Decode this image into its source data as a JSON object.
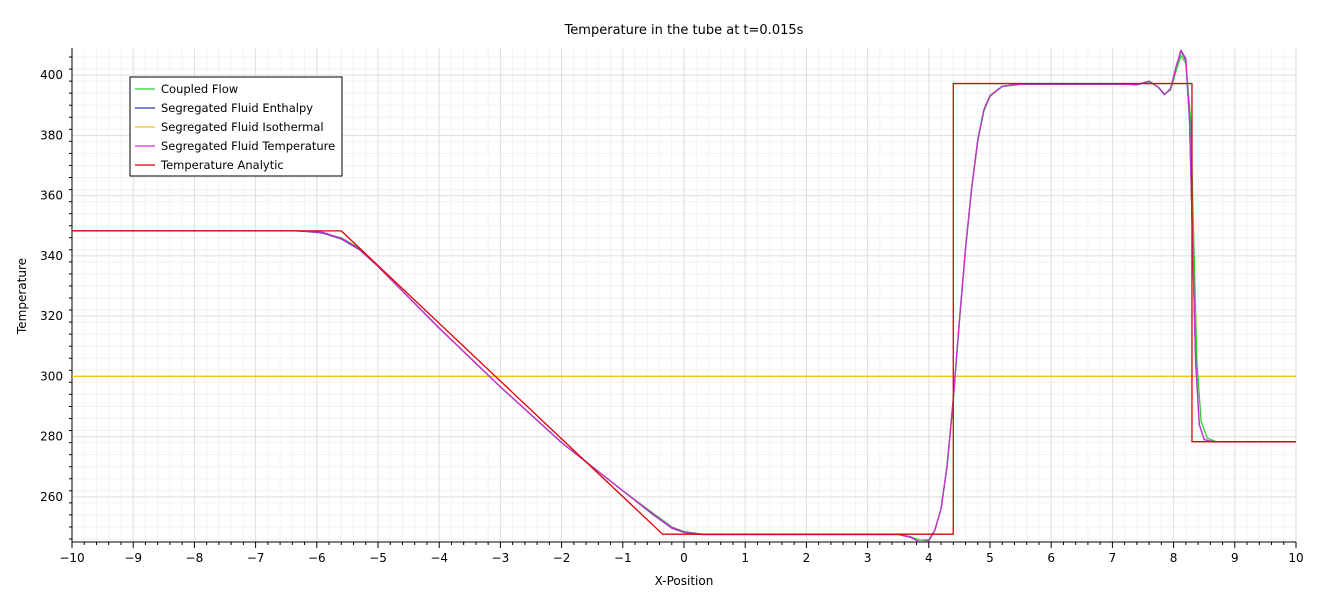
{
  "chart_data": {
    "type": "line",
    "title": "Temperature in the tube at t=0.015s",
    "xlabel": "X-Position",
    "ylabel": "Temperature",
    "xlim": [
      -10,
      10
    ],
    "ylim": [
      245,
      409
    ],
    "xticks": [
      -10,
      -9,
      -8,
      -7,
      -6,
      -5,
      -4,
      -3,
      -2,
      -1,
      0,
      1,
      2,
      3,
      4,
      5,
      6,
      7,
      8,
      9,
      10
    ],
    "yticks": [
      260,
      280,
      300,
      320,
      340,
      360,
      380,
      400
    ],
    "grid": true,
    "legend_position": "top-left",
    "series": [
      {
        "name": "Coupled Flow",
        "color": "#33cc33",
        "points": [
          [
            -10,
            348.3
          ],
          [
            -6.4,
            348.3
          ],
          [
            -6.0,
            348.0
          ],
          [
            -5.6,
            346.0
          ],
          [
            -5.3,
            342.5
          ],
          [
            -5.0,
            336.5
          ],
          [
            -4.0,
            316.0
          ],
          [
            -3.0,
            296.5
          ],
          [
            -2.0,
            278.0
          ],
          [
            -1.0,
            262.0
          ],
          [
            -0.5,
            254.5
          ],
          [
            -0.2,
            250.0
          ],
          [
            0.0,
            248.5
          ],
          [
            0.3,
            247.6
          ],
          [
            3.5,
            247.6
          ],
          [
            3.7,
            246.8
          ],
          [
            3.85,
            245.6
          ],
          [
            4.0,
            245.8
          ],
          [
            4.1,
            249.0
          ],
          [
            4.2,
            256.0
          ],
          [
            4.3,
            270.0
          ],
          [
            4.4,
            292.0
          ],
          [
            4.5,
            318.0
          ],
          [
            4.6,
            342.0
          ],
          [
            4.7,
            362.0
          ],
          [
            4.8,
            378.0
          ],
          [
            4.9,
            388.0
          ],
          [
            5.0,
            393.0
          ],
          [
            5.2,
            396.2
          ],
          [
            5.5,
            397.0
          ],
          [
            7.2,
            397.0
          ],
          [
            7.4,
            396.8
          ],
          [
            7.6,
            397.8
          ],
          [
            7.75,
            396.0
          ],
          [
            7.85,
            393.8
          ],
          [
            7.95,
            395.0
          ],
          [
            8.05,
            402.0
          ],
          [
            8.12,
            406.5
          ],
          [
            8.2,
            404.0
          ],
          [
            8.28,
            385.0
          ],
          [
            8.33,
            345.0
          ],
          [
            8.38,
            305.0
          ],
          [
            8.45,
            285.0
          ],
          [
            8.55,
            279.5
          ],
          [
            8.7,
            278.3
          ],
          [
            10,
            278.3
          ]
        ]
      },
      {
        "name": "Segregated Fluid Enthalpy",
        "color": "#3333aa",
        "points": [
          [
            -10,
            348.3
          ],
          [
            -6.3,
            348.3
          ],
          [
            -5.9,
            347.6
          ],
          [
            -5.6,
            345.6
          ],
          [
            -5.3,
            342.0
          ],
          [
            -5.0,
            336.5
          ],
          [
            -4.0,
            316.0
          ],
          [
            -3.0,
            296.5
          ],
          [
            -2.0,
            278.0
          ],
          [
            -1.0,
            262.0
          ],
          [
            -0.5,
            254.0
          ],
          [
            -0.2,
            249.6
          ],
          [
            0.0,
            248.2
          ],
          [
            0.3,
            247.5
          ],
          [
            3.5,
            247.5
          ],
          [
            3.7,
            246.6
          ],
          [
            3.85,
            245.0
          ],
          [
            4.0,
            245.4
          ],
          [
            4.1,
            249.0
          ],
          [
            4.2,
            256.0
          ],
          [
            4.3,
            270.5
          ],
          [
            4.4,
            292.5
          ],
          [
            4.5,
            318.5
          ],
          [
            4.6,
            342.5
          ],
          [
            4.7,
            362.5
          ],
          [
            4.8,
            378.5
          ],
          [
            4.9,
            388.5
          ],
          [
            5.0,
            393.2
          ],
          [
            5.2,
            396.3
          ],
          [
            5.5,
            397.0
          ],
          [
            7.2,
            397.0
          ],
          [
            7.4,
            396.8
          ],
          [
            7.6,
            398.0
          ],
          [
            7.75,
            396.0
          ],
          [
            7.85,
            393.5
          ],
          [
            7.95,
            395.5
          ],
          [
            8.05,
            403.5
          ],
          [
            8.12,
            408.0
          ],
          [
            8.2,
            405.0
          ],
          [
            8.26,
            385.0
          ],
          [
            8.31,
            345.0
          ],
          [
            8.36,
            305.0
          ],
          [
            8.42,
            284.0
          ],
          [
            8.5,
            279.0
          ],
          [
            8.65,
            278.3
          ],
          [
            10,
            278.3
          ]
        ]
      },
      {
        "name": "Segregated Fluid Isothermal",
        "color": "#f0c020",
        "points": [
          [
            -10,
            300
          ],
          [
            10,
            300
          ]
        ]
      },
      {
        "name": "Segregated Fluid Temperature",
        "color": "#cc33cc",
        "points": [
          [
            -10,
            348.3
          ],
          [
            -6.3,
            348.3
          ],
          [
            -5.9,
            347.8
          ],
          [
            -5.6,
            345.8
          ],
          [
            -5.3,
            342.2
          ],
          [
            -5.0,
            336.5
          ],
          [
            -4.0,
            316.0
          ],
          [
            -3.0,
            296.5
          ],
          [
            -2.0,
            278.0
          ],
          [
            -1.0,
            262.0
          ],
          [
            -0.5,
            254.2
          ],
          [
            -0.2,
            249.8
          ],
          [
            0.0,
            248.3
          ],
          [
            0.3,
            247.5
          ],
          [
            3.5,
            247.5
          ],
          [
            3.7,
            246.6
          ],
          [
            3.85,
            245.0
          ],
          [
            4.0,
            245.4
          ],
          [
            4.1,
            249.0
          ],
          [
            4.2,
            256.0
          ],
          [
            4.3,
            270.5
          ],
          [
            4.4,
            292.5
          ],
          [
            4.5,
            318.5
          ],
          [
            4.6,
            342.5
          ],
          [
            4.7,
            362.5
          ],
          [
            4.8,
            378.5
          ],
          [
            4.9,
            388.5
          ],
          [
            5.0,
            393.2
          ],
          [
            5.2,
            396.3
          ],
          [
            5.5,
            397.0
          ],
          [
            7.2,
            397.0
          ],
          [
            7.4,
            396.8
          ],
          [
            7.6,
            398.0
          ],
          [
            7.75,
            396.0
          ],
          [
            7.85,
            393.5
          ],
          [
            7.95,
            395.5
          ],
          [
            8.05,
            403.5
          ],
          [
            8.12,
            408.3
          ],
          [
            8.2,
            405.5
          ],
          [
            8.26,
            385.0
          ],
          [
            8.31,
            345.0
          ],
          [
            8.36,
            305.0
          ],
          [
            8.42,
            284.0
          ],
          [
            8.5,
            279.0
          ],
          [
            8.65,
            278.3
          ],
          [
            10,
            278.3
          ]
        ]
      },
      {
        "name": "Temperature Analytic",
        "color": "#dd0000",
        "points": [
          [
            -10,
            348.3
          ],
          [
            -5.6,
            348.3
          ],
          [
            -0.35,
            247.6
          ],
          [
            4.4,
            247.6
          ],
          [
            4.4,
            397.2
          ],
          [
            8.3,
            397.2
          ],
          [
            8.3,
            278.3
          ],
          [
            10,
            278.3
          ]
        ]
      }
    ]
  }
}
